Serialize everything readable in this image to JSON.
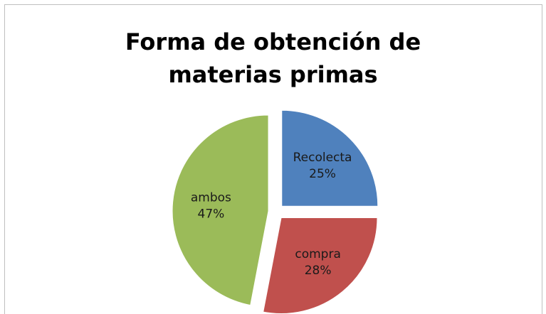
{
  "chart_data": {
    "type": "pie",
    "title": "Forma de obtención de materias primas",
    "categories": [
      "Recolecta",
      "compra",
      "ambos"
    ],
    "values": [
      25,
      28,
      47
    ],
    "value_labels": [
      "25%",
      "28%",
      "47%"
    ],
    "colors": [
      "#4f81bd",
      "#c0504d",
      "#9bbb59"
    ]
  }
}
